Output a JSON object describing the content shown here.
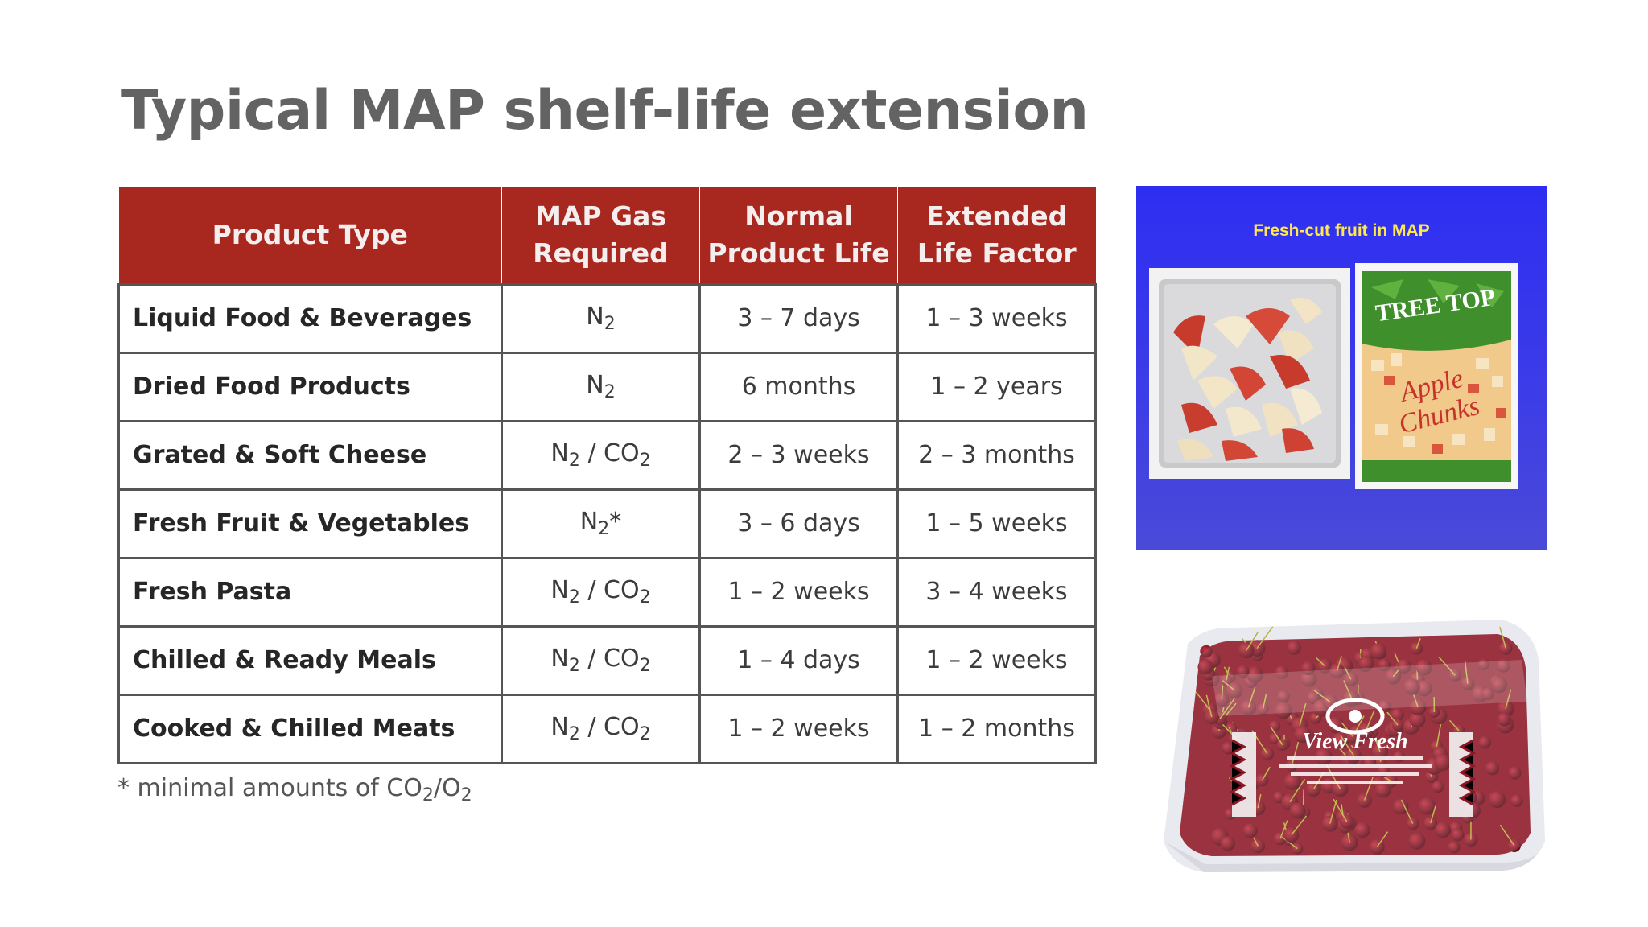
{
  "slide": {
    "title": "Typical MAP shelf-life extension"
  },
  "table": {
    "headers": [
      [
        "Product Type"
      ],
      [
        "MAP Gas",
        "Required"
      ],
      [
        "Normal",
        "Product Life"
      ],
      [
        "Extended",
        "Life Factor"
      ]
    ],
    "rows": [
      {
        "product": "Liquid Food & Beverages",
        "gas": {
          "base": "N",
          "sub": "2",
          "mid": "",
          "base2": "",
          "sub2": "",
          "suffix": ""
        },
        "normal": "3 – 7 days",
        "extended": "1 – 3 weeks"
      },
      {
        "product": "Dried Food Products",
        "gas": {
          "base": "N",
          "sub": "2",
          "mid": "",
          "base2": "",
          "sub2": "",
          "suffix": ""
        },
        "normal": "6 months",
        "extended": "1 – 2 years"
      },
      {
        "product": "Grated & Soft Cheese",
        "gas": {
          "base": "N",
          "sub": "2",
          "mid": " / ",
          "base2": "CO",
          "sub2": "2",
          "suffix": ""
        },
        "normal": "2 – 3 weeks",
        "extended": "2 – 3 months"
      },
      {
        "product": "Fresh Fruit & Vegetables",
        "gas": {
          "base": "N",
          "sub": "2",
          "mid": "",
          "base2": "",
          "sub2": "",
          "suffix": "*"
        },
        "normal": "3 – 6 days",
        "extended": "1 – 5 weeks"
      },
      {
        "product": "Fresh Pasta",
        "gas": {
          "base": "N",
          "sub": "2",
          "mid": " / ",
          "base2": "CO",
          "sub2": "2",
          "suffix": ""
        },
        "normal": "1 – 2 weeks",
        "extended": "3 – 4 weeks"
      },
      {
        "product": "Chilled & Ready Meals",
        "gas": {
          "base": "N",
          "sub": "2",
          "mid": " / ",
          "base2": "CO",
          "sub2": "2",
          "suffix": ""
        },
        "normal": "1 – 4 days",
        "extended": "1 – 2 weeks"
      },
      {
        "product": "Cooked & Chilled Meats",
        "gas": {
          "base": "N",
          "sub": "2",
          "mid": " / ",
          "base2": "CO",
          "sub2": "2",
          "suffix": ""
        },
        "normal": "1 – 2 weeks",
        "extended": "1 – 2 months"
      }
    ]
  },
  "footnote": {
    "prefix": "* minimal amounts of CO",
    "sub1": "2",
    "slash": "/O",
    "sub2": "2"
  },
  "images": {
    "fruit_panel_title": "Fresh-cut fruit in MAP",
    "treetop_brand": "TREE TOP",
    "treetop_product": "Apple Chunks",
    "cherry_brand": "View Fresh"
  },
  "colors": {
    "header_red": "#a8271f",
    "title_gray": "#636363",
    "panel_blue": "#3535ee",
    "panel_title_yellow": "#ffe94a"
  }
}
